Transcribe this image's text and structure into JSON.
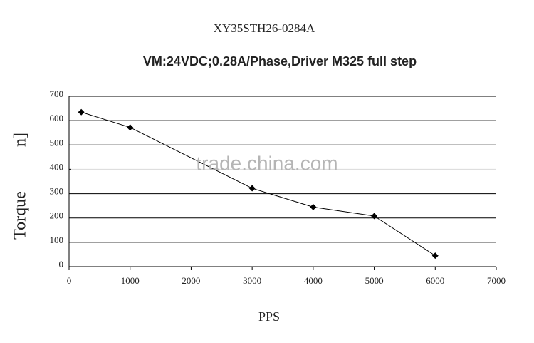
{
  "chart_data": {
    "type": "line",
    "title": "XY35STH26-0284A",
    "subtitle": "VM:24VDC;0.28A/Phase,Driver M325 full step",
    "x_label": "PPS",
    "y_label": "Torque",
    "annotations": [
      "n]",
      "trade.china.com"
    ],
    "x": [
      200,
      1000,
      3000,
      4000,
      5000,
      6000
    ],
    "series": [
      {
        "name": "Torque",
        "color": "#000000",
        "values": [
          635,
          572,
          322,
          245,
          208,
          45
        ]
      }
    ],
    "xlim": [
      0,
      7000
    ],
    "xticks": [
      0,
      1000,
      2000,
      3000,
      4000,
      5000,
      6000,
      7000
    ],
    "ylim": [
      0,
      700
    ],
    "yticks": [
      0,
      100,
      200,
      300,
      400,
      500,
      600,
      700
    ],
    "grid": true
  }
}
